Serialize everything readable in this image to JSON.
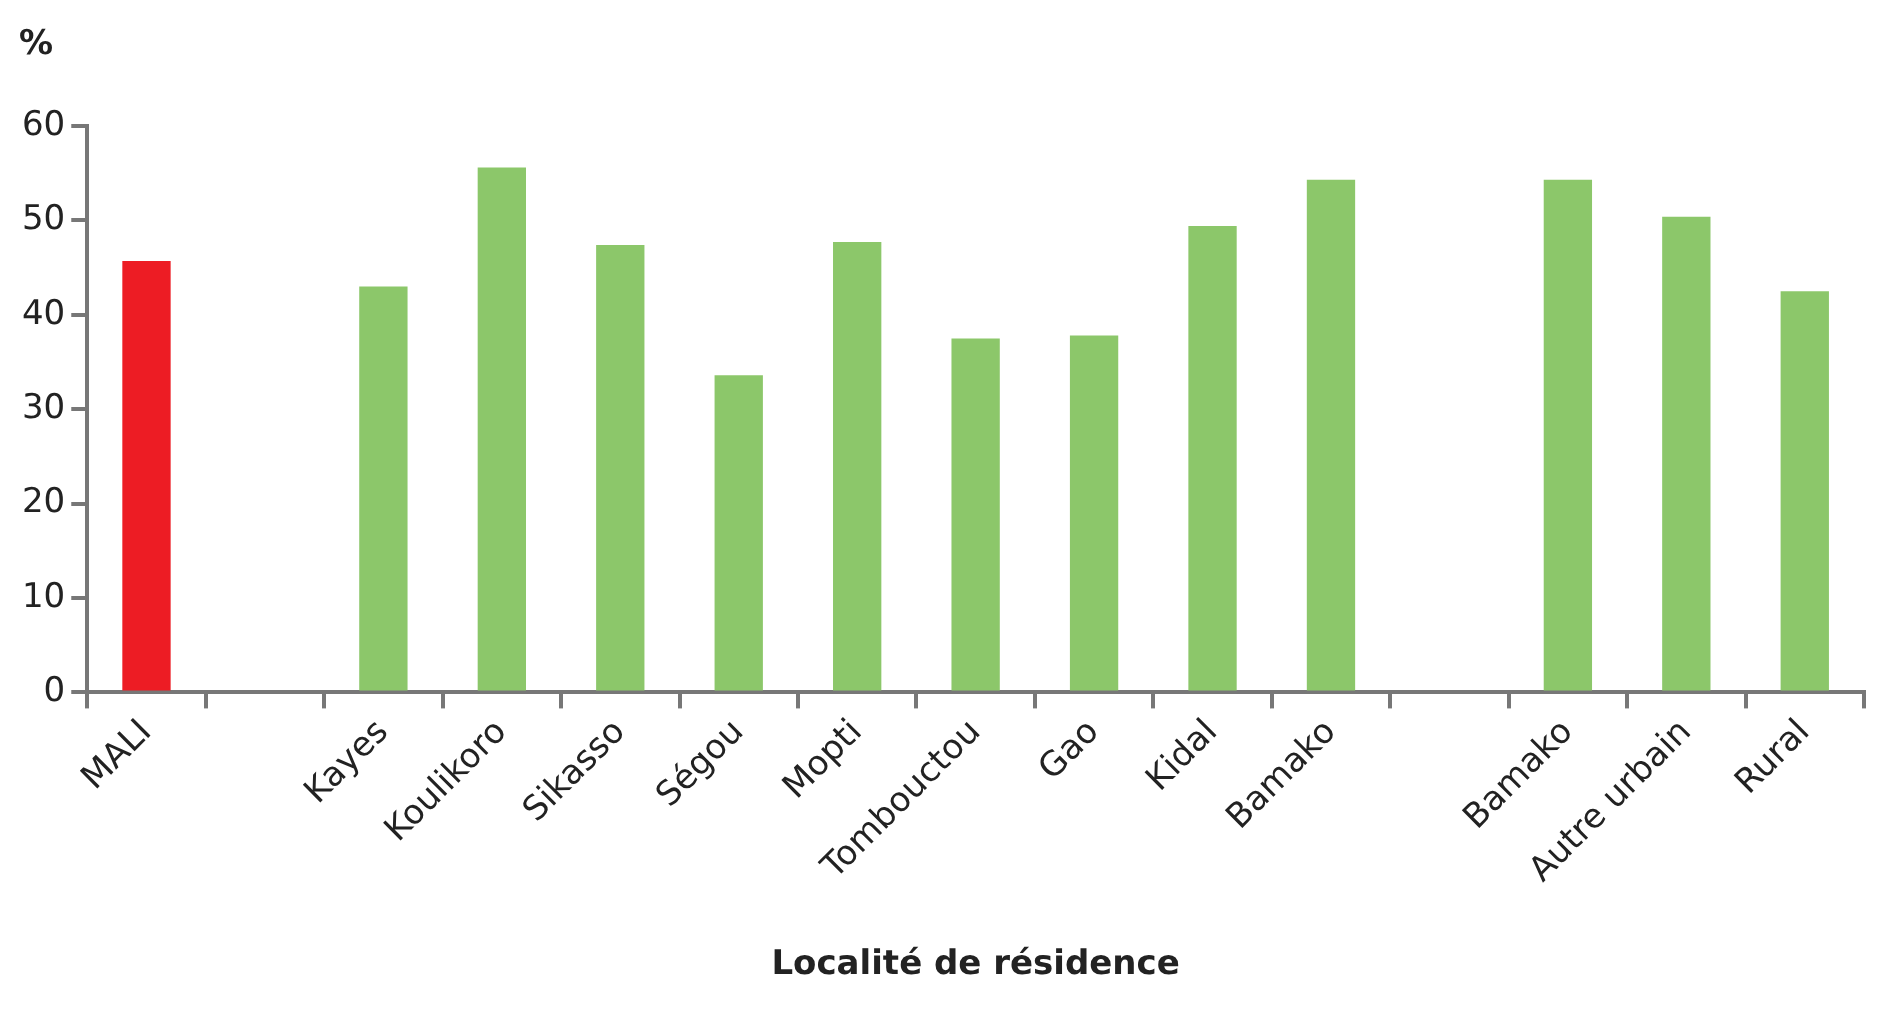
{
  "chart_data": {
    "type": "bar",
    "ylabel": "%",
    "xlabel": "Localité de résidence",
    "categories": [
      "MALI",
      null,
      "Kayes",
      "Koulikoro",
      "Sikasso",
      "Ségou",
      "Mopti",
      "Tombouctou",
      "Gao",
      "Kidal",
      "Bamako",
      null,
      "Bamako",
      "Autre urbain",
      "Rural"
    ],
    "values": [
      45.7,
      null,
      43.0,
      55.6,
      47.4,
      33.6,
      47.7,
      37.5,
      37.8,
      49.4,
      54.3,
      null,
      54.3,
      50.4,
      42.5
    ],
    "colors": [
      "#ed1c24",
      null,
      "#8cc76a",
      "#8cc76a",
      "#8cc76a",
      "#8cc76a",
      "#8cc76a",
      "#8cc76a",
      "#8cc76a",
      "#8cc76a",
      "#8cc76a",
      null,
      "#8cc76a",
      "#8cc76a",
      "#8cc76a"
    ],
    "ylim": [
      0,
      60
    ],
    "yticks": [
      0,
      10,
      20,
      30,
      40,
      50,
      60
    ],
    "grid": false,
    "legend": false
  }
}
